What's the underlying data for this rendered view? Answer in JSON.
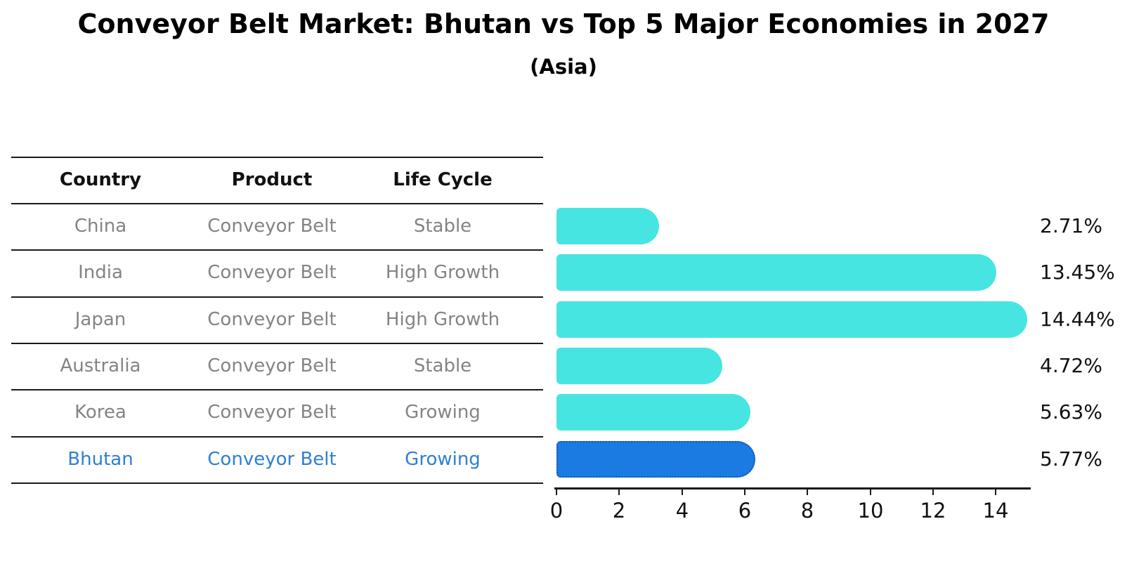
{
  "title": "Conveyor Belt Market: Bhutan vs Top 5 Major Economies in 2027",
  "subtitle": "(Asia)",
  "table": {
    "columns": [
      "Country",
      "Product",
      "Life Cycle"
    ],
    "rows": [
      {
        "country": "China",
        "product": "Conveyor Belt",
        "life_cycle": "Stable",
        "highlight": false
      },
      {
        "country": "India",
        "product": "Conveyor Belt",
        "life_cycle": "High Growth",
        "highlight": false
      },
      {
        "country": "Japan",
        "product": "Conveyor Belt",
        "life_cycle": "High Growth",
        "highlight": false
      },
      {
        "country": "Australia",
        "product": "Conveyor Belt",
        "life_cycle": "Stable",
        "highlight": false
      },
      {
        "country": "Korea",
        "product": "Conveyor Belt",
        "life_cycle": "Growing",
        "highlight": false
      },
      {
        "country": "Bhutan",
        "product": "Conveyor Belt",
        "life_cycle": "Growing",
        "highlight": true
      }
    ]
  },
  "chart_data": {
    "type": "bar",
    "orientation": "horizontal",
    "title": "Conveyor Belt Market: Bhutan vs Top 5 Major Economies in 2027",
    "subtitle": "(Asia)",
    "categories": [
      "China",
      "India",
      "Japan",
      "Australia",
      "Korea",
      "Bhutan"
    ],
    "values": [
      2.71,
      13.45,
      14.44,
      4.72,
      5.63,
      5.77
    ],
    "value_labels": [
      "2.71%",
      "13.45%",
      "14.44%",
      "4.72%",
      "5.63%",
      "5.77%"
    ],
    "highlight_category": "Bhutan",
    "xlabel": "",
    "ylabel": "",
    "xlim": [
      0,
      15
    ],
    "xticks": [
      0,
      2,
      4,
      6,
      8,
      10,
      12,
      14
    ],
    "grid": false,
    "legend": false,
    "colors": {
      "bar": "#47E5E1",
      "highlight_bar": "#1C7BE3",
      "highlight_border": "#1a50b8",
      "highlight_text": "#2E7FD4",
      "row_text": "#848484",
      "axis": "#1a1a1a"
    }
  }
}
